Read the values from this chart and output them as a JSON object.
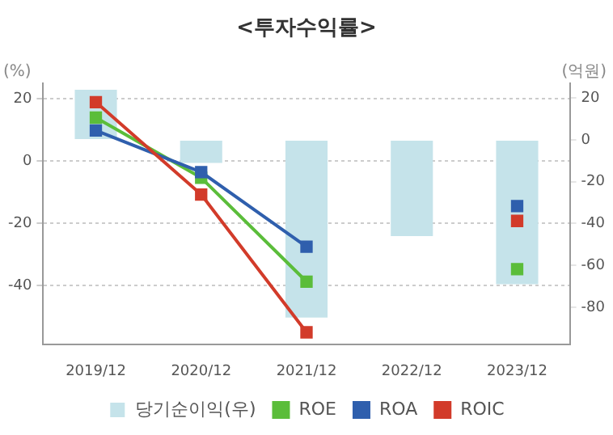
{
  "chart_data": {
    "type": "bar",
    "title": "<투자수익률>",
    "ylabel": "(%)",
    "y2label": "(억원)",
    "categories": [
      "2019/12",
      "2020/12",
      "2021/12",
      "2022/12",
      "2023/12"
    ],
    "series": [
      {
        "name": "당기순이익(우)",
        "axis": "y2",
        "color": "#c5e3ea",
        "values": [
          24,
          -11,
          -85,
          -46,
          -69
        ]
      },
      {
        "name": "ROE",
        "type": "line",
        "color": "#5bbd3a",
        "values": [
          14,
          -5.3,
          -38.7,
          null,
          -34.7
        ]
      },
      {
        "name": "ROA",
        "type": "line",
        "color": "#2f5fad",
        "values": [
          9.9,
          -3.5,
          -27.5,
          null,
          -14.4
        ]
      },
      {
        "name": "ROIC",
        "type": "line",
        "color": "#d23b2a",
        "values": [
          19,
          -10.7,
          -55,
          null,
          -19.2
        ]
      }
    ],
    "ylim": [
      -59,
      25
    ],
    "yticks": [
      -40,
      -20,
      0,
      20
    ],
    "y2lim": [
      -98,
      27
    ],
    "y2ticks": [
      -80,
      -60,
      -40,
      -20,
      0,
      20
    ],
    "grid": "y",
    "legend": "bottom",
    "marker": "square"
  }
}
